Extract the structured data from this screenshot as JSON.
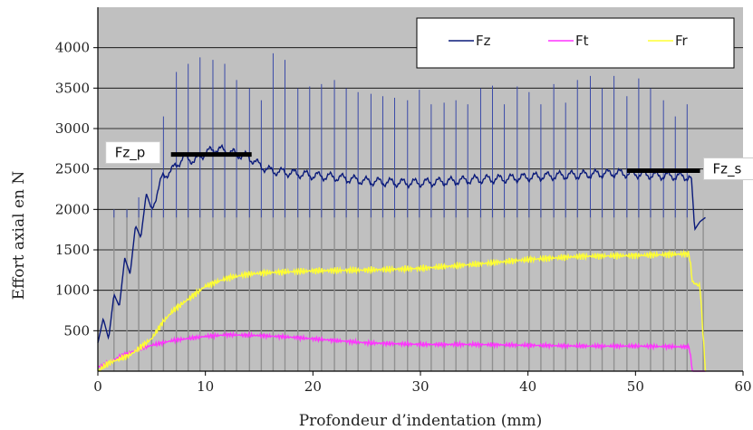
{
  "chart_data": {
    "type": "line",
    "xlabel": "Profondeur d’indentation (mm)",
    "ylabel": "Effort axial en N",
    "xlim": [
      0,
      60
    ],
    "ylim": [
      0,
      4500
    ],
    "xticks": [
      0,
      10,
      20,
      30,
      40,
      50,
      60
    ],
    "yticks": [
      500,
      1000,
      1500,
      2000,
      2500,
      3000,
      3500,
      4000
    ],
    "grid": "horizontal",
    "legend_position": "top-right",
    "colors": {
      "plot_background": "#c0c0c0",
      "Fz": "#0a1a7a",
      "Ft": "#ff33ff",
      "Fr": "#ffff33",
      "spike_gray": "#909090",
      "annotation_line": "#000000"
    },
    "series": [
      {
        "name": "Fz",
        "x": [
          0,
          0.5,
          1,
          1.5,
          2,
          2.5,
          3,
          3.5,
          4,
          4.5,
          5,
          6,
          7,
          8,
          9,
          10,
          11,
          12,
          13,
          14,
          15,
          16,
          18,
          20,
          22,
          25,
          28,
          30,
          33,
          35,
          38,
          40,
          43,
          45,
          48,
          50,
          52,
          54,
          55.2,
          55.5,
          56,
          56.5
        ],
        "y": [
          350,
          650,
          400,
          950,
          800,
          1400,
          1200,
          1800,
          1650,
          2200,
          2000,
          2400,
          2500,
          2650,
          2600,
          2700,
          2750,
          2720,
          2680,
          2650,
          2550,
          2480,
          2450,
          2420,
          2400,
          2350,
          2330,
          2330,
          2350,
          2370,
          2380,
          2400,
          2420,
          2430,
          2450,
          2440,
          2420,
          2410,
          2400,
          1750,
          1850,
          1900
        ]
      },
      {
        "name": "Ft",
        "x": [
          0,
          1,
          2,
          3,
          4,
          5,
          7,
          10,
          12,
          15,
          18,
          20,
          25,
          30,
          35,
          40,
          45,
          50,
          55,
          55.3,
          56.5
        ],
        "y": [
          50,
          100,
          180,
          230,
          280,
          320,
          380,
          430,
          450,
          440,
          420,
          400,
          350,
          330,
          330,
          320,
          310,
          310,
          300,
          0,
          0
        ],
        "amplitude": 30
      },
      {
        "name": "Fr",
        "x": [
          0,
          1,
          2,
          3,
          4,
          5,
          6,
          7,
          8,
          9,
          10,
          12,
          14,
          16,
          18,
          20,
          25,
          30,
          35,
          40,
          45,
          50,
          55,
          55.3,
          56,
          56.5
        ],
        "y": [
          0,
          100,
          150,
          200,
          300,
          400,
          600,
          750,
          850,
          950,
          1050,
          1150,
          1200,
          1220,
          1230,
          1240,
          1250,
          1270,
          1320,
          1380,
          1420,
          1430,
          1450,
          1100,
          1050,
          0
        ],
        "amplitude": 45
      }
    ],
    "spikes": {
      "Fz_peaks": [
        [
          1.5,
          2000
        ],
        [
          2.7,
          2000
        ],
        [
          3.8,
          2150
        ],
        [
          5.0,
          2500
        ],
        [
          6.1,
          3150
        ],
        [
          7.3,
          3700
        ],
        [
          8.4,
          3800
        ],
        [
          9.5,
          3880
        ],
        [
          10.7,
          3850
        ],
        [
          11.8,
          3800
        ],
        [
          12.9,
          3600
        ],
        [
          14.1,
          3500
        ],
        [
          15.2,
          3350
        ],
        [
          16.3,
          3930
        ],
        [
          17.4,
          3850
        ],
        [
          18.6,
          3500
        ],
        [
          19.7,
          3520
        ],
        [
          20.8,
          3550
        ],
        [
          22.0,
          3600
        ],
        [
          23.1,
          3500
        ],
        [
          24.2,
          3450
        ],
        [
          25.4,
          3430
        ],
        [
          26.5,
          3400
        ],
        [
          27.6,
          3380
        ],
        [
          28.8,
          3350
        ],
        [
          29.9,
          3480
        ],
        [
          31.0,
          3300
        ],
        [
          32.2,
          3320
        ],
        [
          33.3,
          3350
        ],
        [
          34.4,
          3300
        ],
        [
          35.6,
          3500
        ],
        [
          36.7,
          3530
        ],
        [
          37.8,
          3300
        ],
        [
          39.0,
          3520
        ],
        [
          40.1,
          3450
        ],
        [
          41.2,
          3300
        ],
        [
          42.4,
          3550
        ],
        [
          43.5,
          3320
        ],
        [
          44.6,
          3600
        ],
        [
          45.8,
          3650
        ],
        [
          46.9,
          3500
        ],
        [
          48.0,
          3650
        ],
        [
          49.2,
          3400
        ],
        [
          50.3,
          3620
        ],
        [
          51.4,
          3500
        ],
        [
          52.6,
          3350
        ],
        [
          53.7,
          3150
        ],
        [
          54.8,
          3300
        ]
      ],
      "gray_bar_top": 2000,
      "gray_bar_x": [
        1.5,
        2.7,
        3.8,
        5.0,
        6.1,
        7.3,
        8.4,
        9.5,
        10.7,
        11.8,
        12.9,
        14.1,
        15.2,
        16.3,
        17.4,
        18.6,
        19.7,
        20.8,
        22.0,
        23.1,
        24.2,
        25.4,
        26.5,
        27.6,
        28.8,
        29.9,
        31.0,
        32.2,
        33.3,
        34.4,
        35.6,
        36.7,
        37.8,
        39.0,
        40.1,
        41.2,
        42.4,
        43.5,
        44.6,
        45.8,
        46.9,
        48.0,
        49.2,
        50.3,
        51.4,
        52.6,
        53.7,
        54.8,
        56.3
      ]
    },
    "annotations": [
      {
        "label": "Fz_p",
        "line_x": [
          6.8,
          14.3
        ],
        "line_y": 2680,
        "box_side": "left"
      },
      {
        "label": "Fz_s",
        "line_x": [
          49.2,
          56.0
        ],
        "line_y": 2480,
        "box_side": "right"
      }
    ]
  }
}
